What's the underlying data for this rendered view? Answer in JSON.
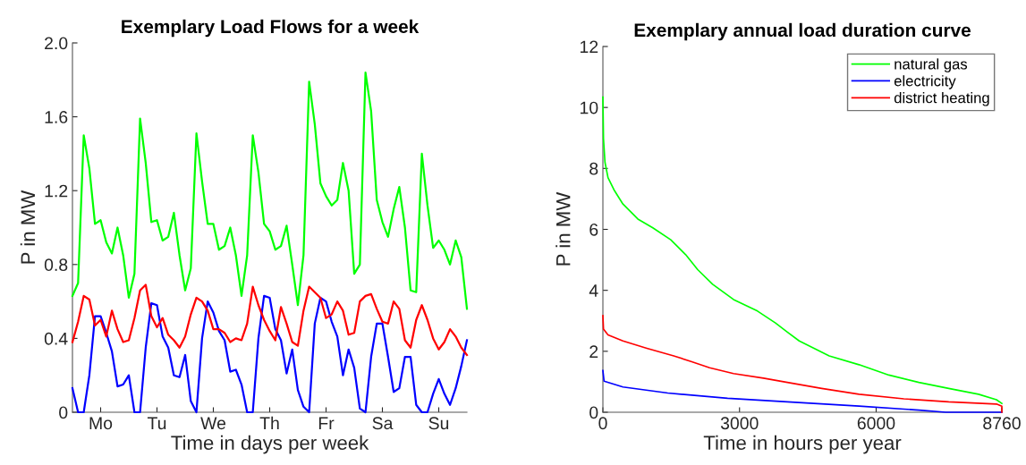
{
  "chart_data": [
    {
      "type": "line",
      "title": "Exemplary Load Flows for a week",
      "xlabel": "Time in days per week",
      "ylabel": "P in MW",
      "categories": [
        null,
        null,
        null,
        null,
        null,
        "Mo",
        null,
        null,
        null,
        null,
        null,
        null,
        null,
        null,
        null,
        "Tu",
        null,
        null,
        null,
        null,
        null,
        null,
        null,
        null,
        null,
        "We",
        null,
        null,
        null,
        null,
        null,
        null,
        null,
        null,
        null,
        "Th",
        null,
        null,
        null,
        null,
        null,
        null,
        null,
        null,
        null,
        "Fr",
        null,
        null,
        null,
        null,
        null,
        null,
        null,
        null,
        null,
        "Sa",
        null,
        null,
        null,
        null,
        null,
        null,
        null,
        null,
        null,
        "Su",
        null,
        null,
        null,
        null,
        null
      ],
      "ylim": [
        0,
        2
      ],
      "yticks": [
        0,
        0.4,
        0.8,
        1.2,
        1.6,
        {
          "value": 2,
          "label": "2.0"
        }
      ],
      "grid": false,
      "legend": false,
      "series": [
        {
          "color": "#00ff00",
          "values": [
            0.63,
            0.7,
            1.5,
            1.32,
            1.02,
            1.04,
            0.92,
            0.86,
            1.0,
            0.85,
            0.62,
            0.75,
            1.59,
            1.35,
            1.03,
            1.04,
            0.93,
            0.95,
            1.08,
            0.85,
            0.66,
            0.78,
            1.51,
            1.25,
            1.02,
            1.02,
            0.88,
            0.9,
            1.0,
            0.85,
            0.63,
            0.85,
            1.5,
            1.3,
            1.02,
            0.98,
            0.88,
            0.9,
            1.01,
            0.8,
            0.58,
            0.85,
            1.79,
            1.56,
            1.24,
            1.17,
            1.12,
            1.15,
            1.35,
            1.2,
            0.75,
            0.8,
            1.84,
            1.63,
            1.15,
            1.03,
            0.95,
            1.1,
            1.22,
            1.0,
            0.66,
            0.65,
            1.4,
            1.12,
            0.89,
            0.93,
            0.88,
            0.8,
            0.93,
            0.84,
            0.56
          ]
        },
        {
          "color": "#0000ff",
          "values": [
            0.13,
            0,
            0,
            0.2,
            0.52,
            0.52,
            0.43,
            0.33,
            0.14,
            0.15,
            0.2,
            0,
            0,
            0.35,
            0.59,
            0.58,
            0.41,
            0.35,
            0.2,
            0.19,
            0.31,
            0.06,
            0,
            0.4,
            0.6,
            0.54,
            0.44,
            0.39,
            0.22,
            0.23,
            0.15,
            0,
            0,
            0.4,
            0.63,
            0.62,
            0.45,
            0.39,
            0.21,
            0.34,
            0.12,
            0.03,
            0,
            0.48,
            0.62,
            0.6,
            0.49,
            0.41,
            0.2,
            0.34,
            0.24,
            0.02,
            0,
            0.3,
            0.48,
            0.48,
            0.3,
            0.11,
            0.13,
            0.3,
            0.3,
            0.04,
            0,
            0,
            0.1,
            0.18,
            0.1,
            0.04,
            0.13,
            0.25,
            0.39
          ]
        },
        {
          "color": "#ff0000",
          "values": [
            0.38,
            0.49,
            0.63,
            0.61,
            0.47,
            0.5,
            0.41,
            0.55,
            0.45,
            0.38,
            0.39,
            0.51,
            0.66,
            0.69,
            0.52,
            0.46,
            0.51,
            0.42,
            0.39,
            0.35,
            0.41,
            0.53,
            0.62,
            0.6,
            0.55,
            0.45,
            0.45,
            0.43,
            0.38,
            0.4,
            0.39,
            0.48,
            0.68,
            0.58,
            0.5,
            0.44,
            0.39,
            0.57,
            0.48,
            0.38,
            0.36,
            0.55,
            0.68,
            0.65,
            0.62,
            0.51,
            0.53,
            0.6,
            0.55,
            0.42,
            0.43,
            0.6,
            0.63,
            0.64,
            0.56,
            0.49,
            0.48,
            0.6,
            0.56,
            0.39,
            0.35,
            0.5,
            0.58,
            0.5,
            0.4,
            0.34,
            0.38,
            0.45,
            0.41,
            0.35,
            0.31
          ]
        }
      ]
    },
    {
      "type": "line",
      "title": "Exemplary annual load duration curve",
      "xlabel": "Time in hours per year",
      "ylabel": "P in MW",
      "xlim": [
        0,
        8760
      ],
      "xticks": [
        0,
        3000,
        6000,
        8760
      ],
      "ylim": [
        0,
        12
      ],
      "yticks": [
        0,
        2,
        4,
        6,
        8,
        10,
        12
      ],
      "grid": false,
      "legend": "top right",
      "series": [
        {
          "name": "natural gas",
          "color": "#00ff00",
          "x": [
            0,
            13,
            46,
            112,
            243,
            440,
            768,
            1096,
            1490,
            1818,
            2081,
            2409,
            2868,
            3394,
            3788,
            4050,
            4311,
            4969,
            5624,
            6280,
            6937,
            7593,
            8248,
            8642,
            8760
          ],
          "values": [
            10.34,
            8.98,
            8.2,
            7.7,
            7.3,
            6.83,
            6.34,
            6.05,
            5.66,
            5.17,
            4.68,
            4.2,
            3.7,
            3.32,
            2.93,
            2.63,
            2.34,
            1.85,
            1.56,
            1.22,
            0.98,
            0.78,
            0.59,
            0.41,
            0.29
          ]
        },
        {
          "name": "electricity",
          "color": "#0000ff",
          "x": [
            0,
            26,
            440,
            1424,
            2737,
            4050,
            5624,
            6937,
            7527,
            8760
          ],
          "values": [
            1.37,
            1.02,
            0.83,
            0.63,
            0.46,
            0.34,
            0.2,
            0.07,
            0,
            0
          ]
        },
        {
          "name": "district heating",
          "color": "#ff0000",
          "x": [
            0,
            13,
            112,
            440,
            965,
            1556,
            1950,
            2343,
            2868,
            3525,
            4050,
            4804,
            5624,
            6608,
            7593,
            8642,
            8760,
            8760
          ],
          "values": [
            3.17,
            2.73,
            2.54,
            2.34,
            2.1,
            1.85,
            1.66,
            1.46,
            1.27,
            1.12,
            0.98,
            0.78,
            0.59,
            0.44,
            0.34,
            0.27,
            0.2,
            0
          ]
        }
      ]
    }
  ]
}
